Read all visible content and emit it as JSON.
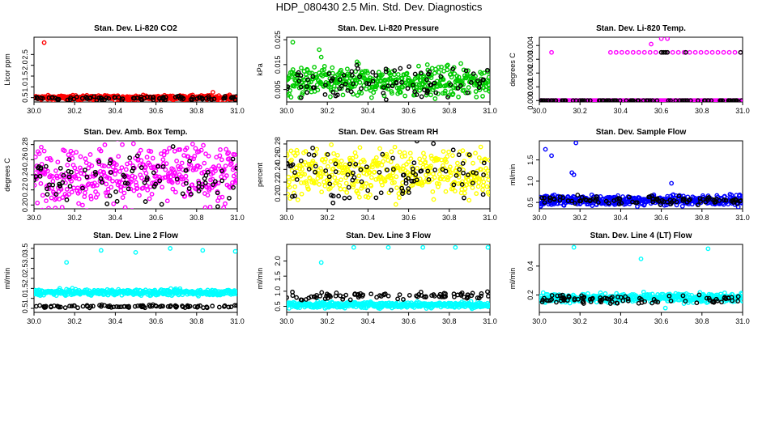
{
  "figure_title": "HDP_080430  2.5 Min. Std. Dev. Diagnostics",
  "chart_data": [
    {
      "type": "scatter",
      "title": "Stan. Dev. Li-820 CO2",
      "ylabel": "Licor ppm",
      "color": "#ff0000",
      "xlim": [
        30.0,
        31.0
      ],
      "ylim": [
        0.3,
        3.3
      ],
      "xticks": [
        "30.0",
        "30.2",
        "30.4",
        "30.6",
        "30.8",
        "31.0"
      ],
      "yticks": [
        "0.5",
        "1.0",
        "1.5",
        "2.0",
        "2.5"
      ],
      "main_series": {
        "name": "colored",
        "band_center": 0.5,
        "band_spread": 0.05
      },
      "reference_series": {
        "name": "black",
        "band_center": 0.47,
        "band_spread": 0.05
      },
      "outliers": [
        [
          30.05,
          3.05
        ],
        [
          30.88,
          0.75
        ]
      ]
    },
    {
      "type": "scatter",
      "title": "Stan. Dev. Li-820 Pressure",
      "ylabel": "kPa",
      "color": "#00cc00",
      "xlim": [
        30.0,
        31.0
      ],
      "ylim": [
        0.0,
        0.026
      ],
      "xticks": [
        "30.0",
        "30.2",
        "30.4",
        "30.6",
        "30.8",
        "31.0"
      ],
      "yticks": [
        "0.005",
        "0.015",
        "0.025"
      ],
      "main_series": {
        "name": "colored",
        "band_center": 0.008,
        "band_spread": 0.003
      },
      "reference_series": {
        "name": "black",
        "band_center": 0.008,
        "band_spread": 0.003
      },
      "outliers": [
        [
          30.03,
          0.024
        ],
        [
          30.17,
          0.018
        ],
        [
          30.16,
          0.021
        ]
      ]
    },
    {
      "type": "scatter",
      "title": "Stan. Dev. Li-820 Temp.",
      "ylabel": "degrees C",
      "color": "#ff00ff",
      "xlim": [
        30.0,
        31.0
      ],
      "ylim": [
        -0.0001,
        0.0046
      ],
      "xticks": [
        "30.0",
        "30.2",
        "30.4",
        "30.6",
        "30.8",
        "31.0"
      ],
      "yticks": [
        "0.000",
        "0.001",
        "0.002",
        "0.003",
        "0.004"
      ],
      "main_series": {
        "name": "colored",
        "band_center": 0.0,
        "band_spread": 0.0
      },
      "reference_series": {
        "name": "black",
        "band_center": 0.0,
        "band_spread": 0.0
      },
      "upper_level": 0.0035,
      "outliers": [
        [
          30.06,
          0.0035
        ],
        [
          30.55,
          0.0041
        ],
        [
          30.6,
          0.0045
        ],
        [
          30.63,
          0.0045
        ]
      ]
    },
    {
      "type": "scatter",
      "title": "Stan. Dev. Amb. Box Temp.",
      "ylabel": "degrees C",
      "color": "#ff00ff",
      "xlim": [
        30.0,
        31.0
      ],
      "ylim": [
        0.195,
        0.285
      ],
      "xticks": [
        "30.0",
        "30.2",
        "30.4",
        "30.6",
        "30.8",
        "31.0"
      ],
      "yticks": [
        "0.20",
        "0.22",
        "0.24",
        "0.26",
        "0.28"
      ],
      "main_series": {
        "name": "colored",
        "band_center": 0.24,
        "band_spread": 0.02
      },
      "reference_series": {
        "name": "black",
        "band_center": 0.235,
        "band_spread": 0.015
      },
      "outliers": []
    },
    {
      "type": "scatter",
      "title": "Stan. Dev. Gas Stream RH",
      "ylabel": "percent",
      "color": "#ffff00",
      "xlim": [
        30.0,
        31.0
      ],
      "ylim": [
        0.178,
        0.285
      ],
      "xticks": [
        "30.0",
        "30.2",
        "30.4",
        "30.6",
        "30.8",
        "31.0"
      ],
      "yticks": [
        "0.20",
        "0.22",
        "0.24",
        "0.26",
        "0.28"
      ],
      "main_series": {
        "name": "colored",
        "band_center": 0.235,
        "band_spread": 0.02
      },
      "reference_series": {
        "name": "black",
        "band_center": 0.23,
        "band_spread": 0.02
      },
      "outliers": []
    },
    {
      "type": "scatter",
      "title": "Stan. Dev. Sample Flow",
      "ylabel": "ml/min",
      "color": "#0000ff",
      "xlim": [
        30.0,
        31.0
      ],
      "ylim": [
        0.35,
        1.95
      ],
      "xticks": [
        "30.0",
        "30.2",
        "30.4",
        "30.6",
        "30.8",
        "31.0"
      ],
      "yticks": [
        "0.5",
        "1.0",
        "1.5"
      ],
      "main_series": {
        "name": "colored",
        "band_center": 0.55,
        "band_spread": 0.06
      },
      "reference_series": {
        "name": "black",
        "band_center": 0.55,
        "band_spread": 0.05
      },
      "outliers": [
        [
          30.03,
          1.75
        ],
        [
          30.06,
          1.6
        ],
        [
          30.18,
          1.9
        ],
        [
          30.16,
          1.2
        ],
        [
          30.17,
          1.15
        ],
        [
          30.65,
          0.95
        ]
      ]
    },
    {
      "type": "scatter",
      "title": "Stan. Dev. Line 2 Flow",
      "ylabel": "ml/min",
      "color": "#00ffff",
      "xlim": [
        30.0,
        31.0
      ],
      "ylim": [
        0.3,
        3.7
      ],
      "xticks": [
        "30.0",
        "30.2",
        "30.4",
        "30.6",
        "30.8",
        "31.0"
      ],
      "yticks": [
        "0.5",
        "1.0",
        "1.5",
        "2.0",
        "2.5",
        "3.0",
        "3.5"
      ],
      "main_series": {
        "name": "colored",
        "band_center": 1.3,
        "band_spread": 0.07
      },
      "reference_series": {
        "name": "black",
        "band_center": 0.6,
        "band_spread": 0.04
      },
      "outliers": [
        [
          30.16,
          2.8
        ],
        [
          30.33,
          3.4
        ],
        [
          30.5,
          3.3
        ],
        [
          30.67,
          3.5
        ],
        [
          30.83,
          3.4
        ],
        [
          30.99,
          3.35
        ]
      ]
    },
    {
      "type": "scatter",
      "title": "Stan. Dev. Line 3 Flow",
      "ylabel": "ml/min",
      "color": "#00ffff",
      "xlim": [
        30.0,
        31.0
      ],
      "ylim": [
        0.3,
        2.55
      ],
      "xticks": [
        "30.0",
        "30.2",
        "30.4",
        "30.6",
        "30.8",
        "31.0"
      ],
      "yticks": [
        "0.5",
        "1.0",
        "1.5",
        "2.0"
      ],
      "main_series": {
        "name": "colored",
        "band_center": 0.55,
        "band_spread": 0.05
      },
      "reference_series": {
        "name": "black",
        "band_center": 0.85,
        "band_spread": 0.06
      },
      "outliers": [
        [
          30.17,
          1.95
        ],
        [
          30.33,
          2.45
        ],
        [
          30.5,
          2.45
        ],
        [
          30.67,
          2.45
        ],
        [
          30.83,
          2.45
        ],
        [
          30.99,
          2.45
        ]
      ]
    },
    {
      "type": "scatter",
      "title": "Stan. Dev. Line 4 (LT) Flow",
      "ylabel": "ml/min",
      "color": "#00ffff",
      "xlim": [
        30.0,
        31.0
      ],
      "ylim": [
        0.08,
        0.55
      ],
      "xticks": [
        "30.0",
        "30.2",
        "30.4",
        "30.6",
        "30.8",
        "31.0"
      ],
      "yticks": [
        "0.2",
        "0.4"
      ],
      "main_series": {
        "name": "colored",
        "band_center": 0.18,
        "band_spread": 0.015
      },
      "reference_series": {
        "name": "black",
        "band_center": 0.17,
        "band_spread": 0.015
      },
      "outliers": [
        [
          30.17,
          0.53
        ],
        [
          30.5,
          0.45
        ],
        [
          30.83,
          0.52
        ],
        [
          30.62,
          0.11
        ]
      ]
    }
  ]
}
